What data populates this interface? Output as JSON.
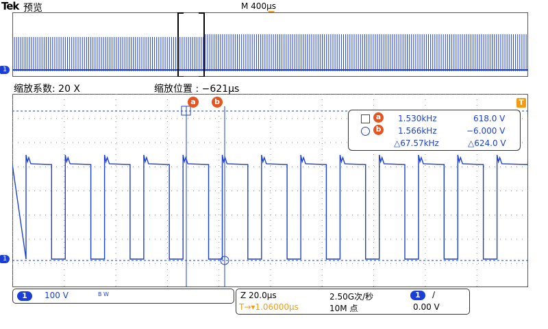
{
  "header": {
    "brand": "Tek",
    "mode": "预览",
    "timebase": "M 400µs"
  },
  "zoom": {
    "factor_label": "缩放系数: 20 X",
    "position_label": "缩放位置 :  −621µs"
  },
  "markers": {
    "channel": "1",
    "trigger": "T"
  },
  "cursors": {
    "a_label": "a",
    "b_label": "b",
    "readout": {
      "a_freq": "1.530kHz",
      "a_volt": "618.0 V",
      "b_freq": "1.566kHz",
      "b_volt": "−6.000 V",
      "delta_freq": "△67.57kHz",
      "delta_volt": "△624.0 V"
    }
  },
  "channel_panel": {
    "channel": "1",
    "scale": "100 V",
    "bw": "B W"
  },
  "acquisition_panel": {
    "horizontal": "Z 20.0µs",
    "sample_rate": "2.50G次/秒",
    "trigger_channel": "1",
    "slope": "∕",
    "trigger_pos": "T→▾1.06000µs",
    "record_length": "10M 点",
    "trigger_level": "0.00 V"
  },
  "colors": {
    "trace": "#1b3fd6",
    "trigger": "#f39c12",
    "cursor": "#e4541e"
  }
}
